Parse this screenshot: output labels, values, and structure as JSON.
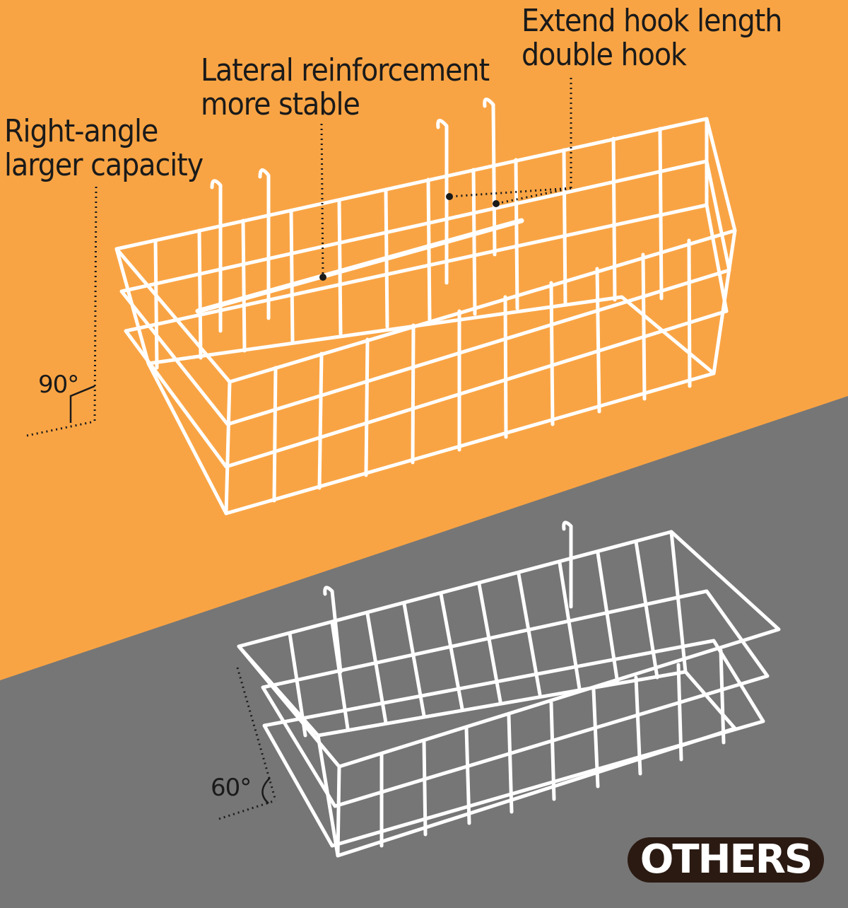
{
  "colors": {
    "orange": "#F9A444",
    "gray": "#767676",
    "wire": "#FFFFFF",
    "text": "#1A1A1A",
    "badge": "#2B1A12"
  },
  "features": {
    "right_angle": {
      "line1": "Right-angle",
      "line2": "larger capacity"
    },
    "lateral": {
      "line1": "Lateral reinforcement",
      "line2": "more stable"
    },
    "hook": {
      "line1": "Extend hook length",
      "line2": "double hook"
    }
  },
  "angles": {
    "ours": "90°",
    "others": "60°"
  },
  "badge": {
    "label": "OTHERS"
  }
}
